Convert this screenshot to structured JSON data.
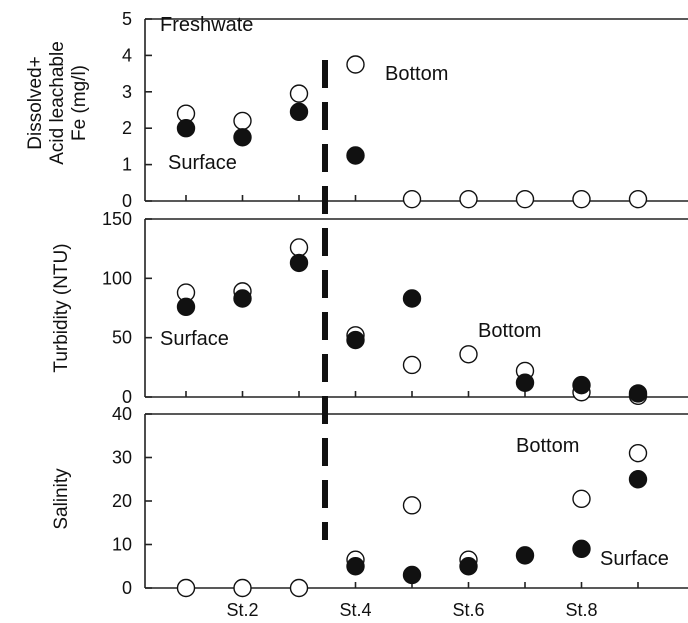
{
  "chart_data": [
    {
      "type": "scatter",
      "ylabel": [
        "Dissolved+",
        "Acid leachable",
        "Fe (mg/l)"
      ],
      "ylim": [
        0,
        5
      ],
      "yticks": [
        0,
        1,
        2,
        3,
        4,
        5
      ],
      "annotations": [
        "Freshwate",
        "Bottom",
        "Surface"
      ],
      "series": [
        {
          "name": "Surface",
          "filled": true,
          "points": [
            [
              1,
              2.0
            ],
            [
              2,
              1.75
            ],
            [
              3,
              2.45
            ],
            [
              4,
              1.25
            ]
          ]
        },
        {
          "name": "Bottom",
          "filled": false,
          "points": [
            [
              1,
              2.4
            ],
            [
              2,
              2.2
            ],
            [
              3,
              2.95
            ],
            [
              4,
              3.75
            ],
            [
              5,
              0.05
            ],
            [
              6,
              0.05
            ],
            [
              7,
              0.05
            ],
            [
              8,
              0.05
            ],
            [
              9,
              0.05
            ]
          ]
        }
      ]
    },
    {
      "type": "scatter",
      "ylabel": [
        "Turbidity (NTU)"
      ],
      "ylim": [
        0,
        150
      ],
      "yticks": [
        0,
        50,
        100,
        150
      ],
      "annotations": [
        "Surface",
        "Bottom"
      ],
      "series": [
        {
          "name": "Surface",
          "filled": true,
          "points": [
            [
              1,
              76
            ],
            [
              2,
              83
            ],
            [
              3,
              113
            ],
            [
              4,
              48
            ],
            [
              5,
              83
            ],
            [
              7,
              12
            ],
            [
              8,
              10
            ],
            [
              9,
              3
            ]
          ]
        },
        {
          "name": "Bottom",
          "filled": false,
          "points": [
            [
              1,
              88
            ],
            [
              2,
              89
            ],
            [
              3,
              126
            ],
            [
              4,
              52
            ],
            [
              5,
              27
            ],
            [
              6,
              36
            ],
            [
              7,
              22
            ],
            [
              8,
              4
            ],
            [
              9,
              1
            ]
          ]
        }
      ]
    },
    {
      "type": "scatter",
      "ylabel": [
        "Salinity"
      ],
      "ylim": [
        0,
        40
      ],
      "yticks": [
        0,
        10,
        20,
        30,
        40
      ],
      "xticks": [
        {
          "x": 2,
          "label": "St.2"
        },
        {
          "x": 4,
          "label": "St.4"
        },
        {
          "x": 6,
          "label": "St.6"
        },
        {
          "x": 8,
          "label": "St.8"
        }
      ],
      "annotations": [
        "Bottom",
        "Surface"
      ],
      "series": [
        {
          "name": "Surface",
          "filled": true,
          "points": [
            [
              4,
              5
            ],
            [
              5,
              3
            ],
            [
              6,
              5
            ],
            [
              7,
              7.5
            ],
            [
              8,
              9
            ],
            [
              9,
              25
            ]
          ]
        },
        {
          "name": "Bottom",
          "filled": false,
          "points": [
            [
              1,
              0
            ],
            [
              2,
              0
            ],
            [
              3,
              0
            ],
            [
              4,
              6.5
            ],
            [
              5,
              19
            ],
            [
              6,
              6.5
            ],
            [
              8,
              20.5
            ],
            [
              9,
              31
            ]
          ]
        }
      ]
    }
  ]
}
